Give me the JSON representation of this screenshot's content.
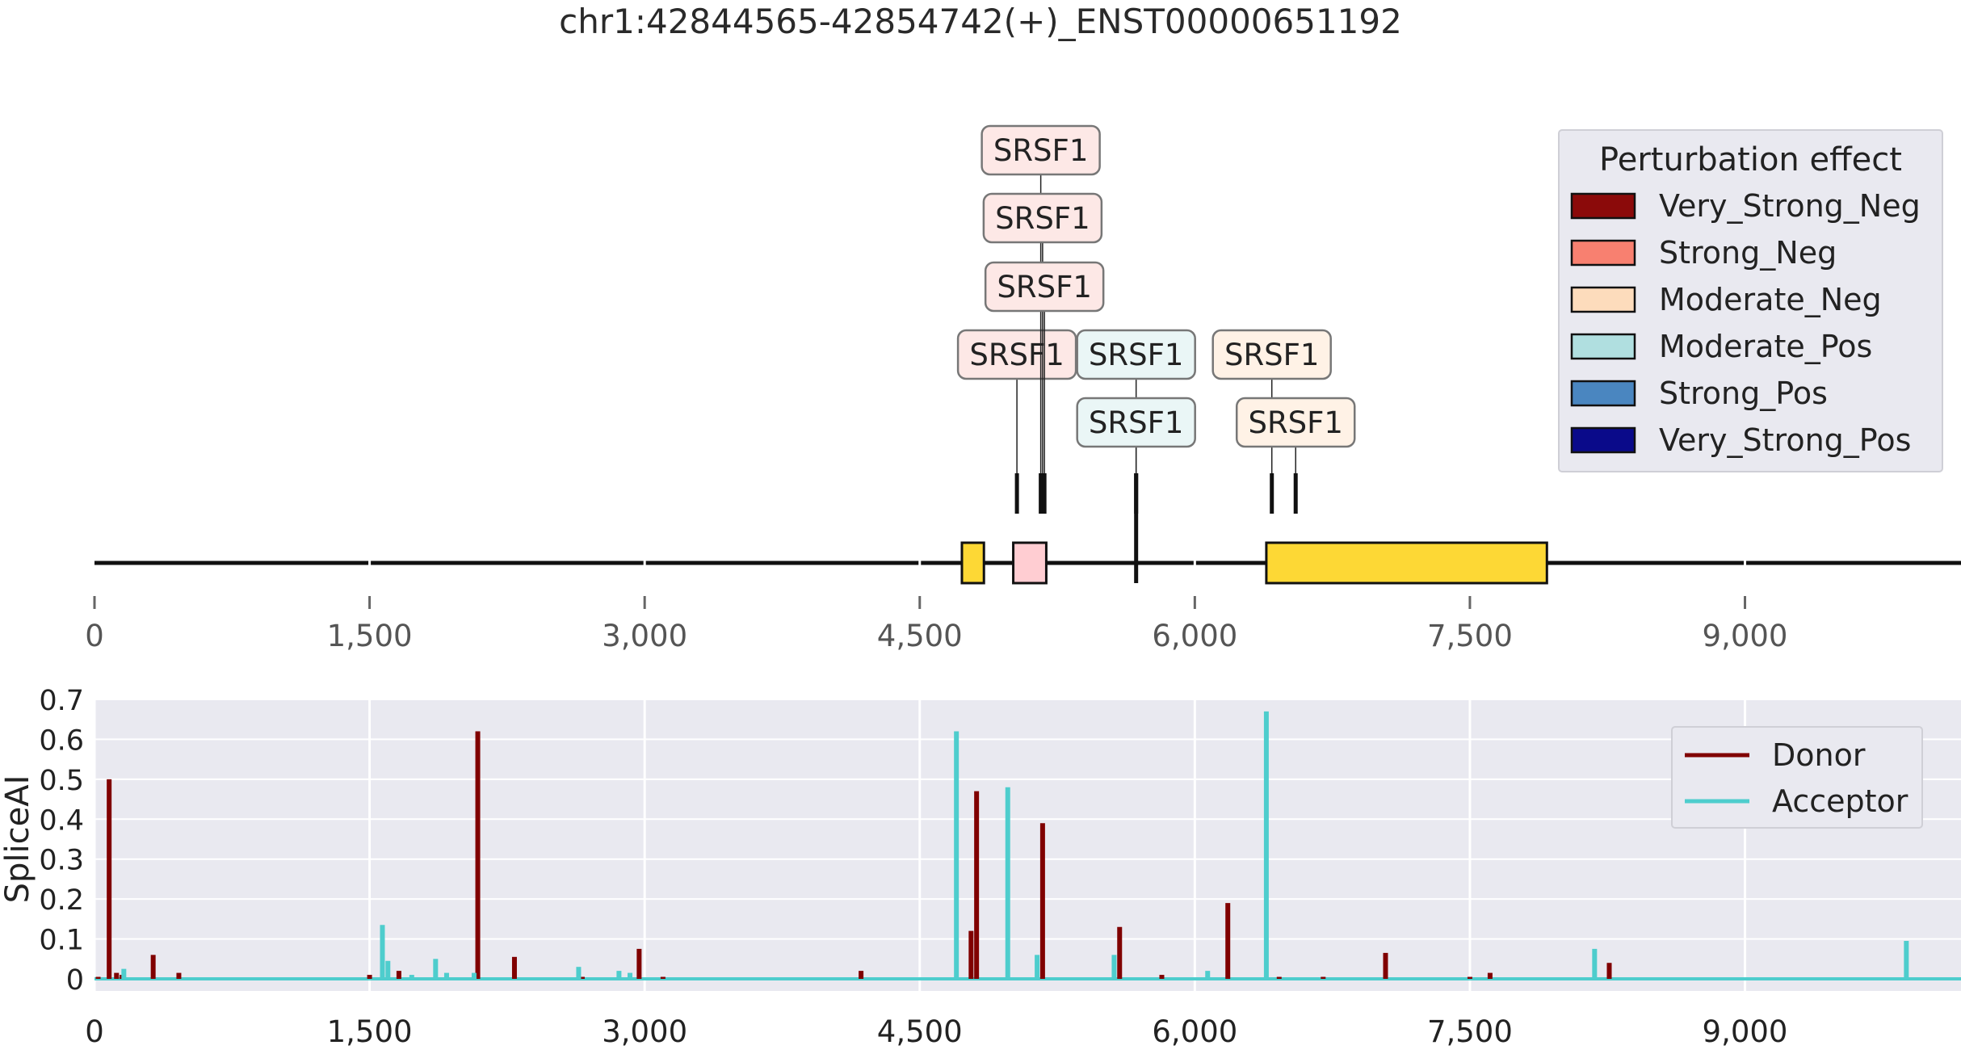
{
  "chart_data": [
    {
      "type": "gene-track",
      "title": "chr1:42844565-42854742(+)_ENST00000651192",
      "xlim": [
        0,
        10178
      ],
      "x_ticks": [
        0,
        1500,
        3000,
        4500,
        6000,
        7500,
        9000
      ],
      "x_tick_labels": [
        "0",
        "1,500",
        "3,000",
        "4,500",
        "6,000",
        "7,500",
        "9,000"
      ],
      "exons": [
        {
          "start": 4730,
          "end": 4850,
          "color": "#fdd835"
        },
        {
          "start": 5010,
          "end": 5190,
          "color": "#ffcdd2"
        },
        {
          "start": 6390,
          "end": 7920,
          "color": "#fdd835"
        }
      ],
      "binding_sites": [
        {
          "label": "SRSF1",
          "position": 5030,
          "effect": "Strong_Neg",
          "level": 1
        },
        {
          "label": "SRSF1",
          "position": 5160,
          "effect": "Strong_Neg",
          "level": 4
        },
        {
          "label": "SRSF1",
          "position": 5170,
          "effect": "Strong_Neg",
          "level": 3
        },
        {
          "label": "SRSF1",
          "position": 5180,
          "effect": "Strong_Neg",
          "level": 2
        },
        {
          "label": "SRSF1",
          "position": 5680,
          "effect": "Moderate_Pos",
          "level": 1
        },
        {
          "label": "SRSF1",
          "position": 5680,
          "effect": "Moderate_Pos",
          "level": 0
        },
        {
          "label": "SRSF1",
          "position": 6420,
          "effect": "Moderate_Neg",
          "level": 1
        },
        {
          "label": "SRSF1",
          "position": 6550,
          "effect": "Moderate_Neg",
          "level": 0
        }
      ],
      "legend": {
        "title": "Perturbation effect",
        "placement": "top-right",
        "entries": [
          {
            "label": "Very_Strong_Neg",
            "color": "#8b0a0a"
          },
          {
            "label": "Strong_Neg",
            "color": "#f88070"
          },
          {
            "label": "Moderate_Neg",
            "color": "#fddcbc"
          },
          {
            "label": "Moderate_Pos",
            "color": "#b0dfe0"
          },
          {
            "label": "Strong_Pos",
            "color": "#4a86c0"
          },
          {
            "label": "Very_Strong_Pos",
            "color": "#0a0a8a"
          }
        ]
      },
      "label_fill": {
        "Strong_Neg": "#fde8e6",
        "Moderate_Neg": "#fff2e6",
        "Moderate_Pos": "#eaf6f6"
      }
    },
    {
      "type": "bar",
      "ylabel": "SpliceAI",
      "ylim": [
        0,
        0.7
      ],
      "y_ticks": [
        0,
        0.1,
        0.2,
        0.3,
        0.4,
        0.5,
        0.6,
        0.7
      ],
      "y_tick_labels": [
        "0",
        "0.1",
        "0.2",
        "0.3",
        "0.4",
        "0.5",
        "0.6",
        "0.7"
      ],
      "xlim": [
        0,
        10178
      ],
      "x_ticks": [
        0,
        1500,
        3000,
        4500,
        6000,
        7500,
        9000
      ],
      "x_tick_labels": [
        "0",
        "1,500",
        "3,000",
        "4,500",
        "6,000",
        "7,500",
        "9,000"
      ],
      "grid": true,
      "legend_placement": "top-right",
      "series": [
        {
          "name": "Donor",
          "color": "#800000",
          "points": [
            [
              20,
              0.005
            ],
            [
              80,
              0.5
            ],
            [
              120,
              0.015
            ],
            [
              150,
              0.01
            ],
            [
              320,
              0.06
            ],
            [
              460,
              0.015
            ],
            [
              1500,
              0.01
            ],
            [
              1660,
              0.02
            ],
            [
              2090,
              0.62
            ],
            [
              2290,
              0.055
            ],
            [
              2660,
              0.005
            ],
            [
              2970,
              0.075
            ],
            [
              3100,
              0.005
            ],
            [
              4180,
              0.02
            ],
            [
              4780,
              0.12
            ],
            [
              4810,
              0.47
            ],
            [
              5170,
              0.39
            ],
            [
              5590,
              0.13
            ],
            [
              5820,
              0.01
            ],
            [
              6180,
              0.19
            ],
            [
              6460,
              0.005
            ],
            [
              6700,
              0.005
            ],
            [
              7040,
              0.065
            ],
            [
              7500,
              0.005
            ],
            [
              7610,
              0.015
            ],
            [
              8260,
              0.04
            ]
          ]
        },
        {
          "name": "Acceptor",
          "color": "#4ecdcd",
          "points": [
            [
              160,
              0.025
            ],
            [
              1570,
              0.135
            ],
            [
              1600,
              0.045
            ],
            [
              1730,
              0.01
            ],
            [
              1860,
              0.05
            ],
            [
              1920,
              0.015
            ],
            [
              2070,
              0.015
            ],
            [
              2640,
              0.03
            ],
            [
              2860,
              0.02
            ],
            [
              2920,
              0.015
            ],
            [
              4700,
              0.62
            ],
            [
              4980,
              0.48
            ],
            [
              5140,
              0.06
            ],
            [
              5560,
              0.06
            ],
            [
              6070,
              0.02
            ],
            [
              6390,
              0.67
            ],
            [
              8180,
              0.075
            ],
            [
              9880,
              0.095
            ]
          ]
        }
      ]
    }
  ]
}
